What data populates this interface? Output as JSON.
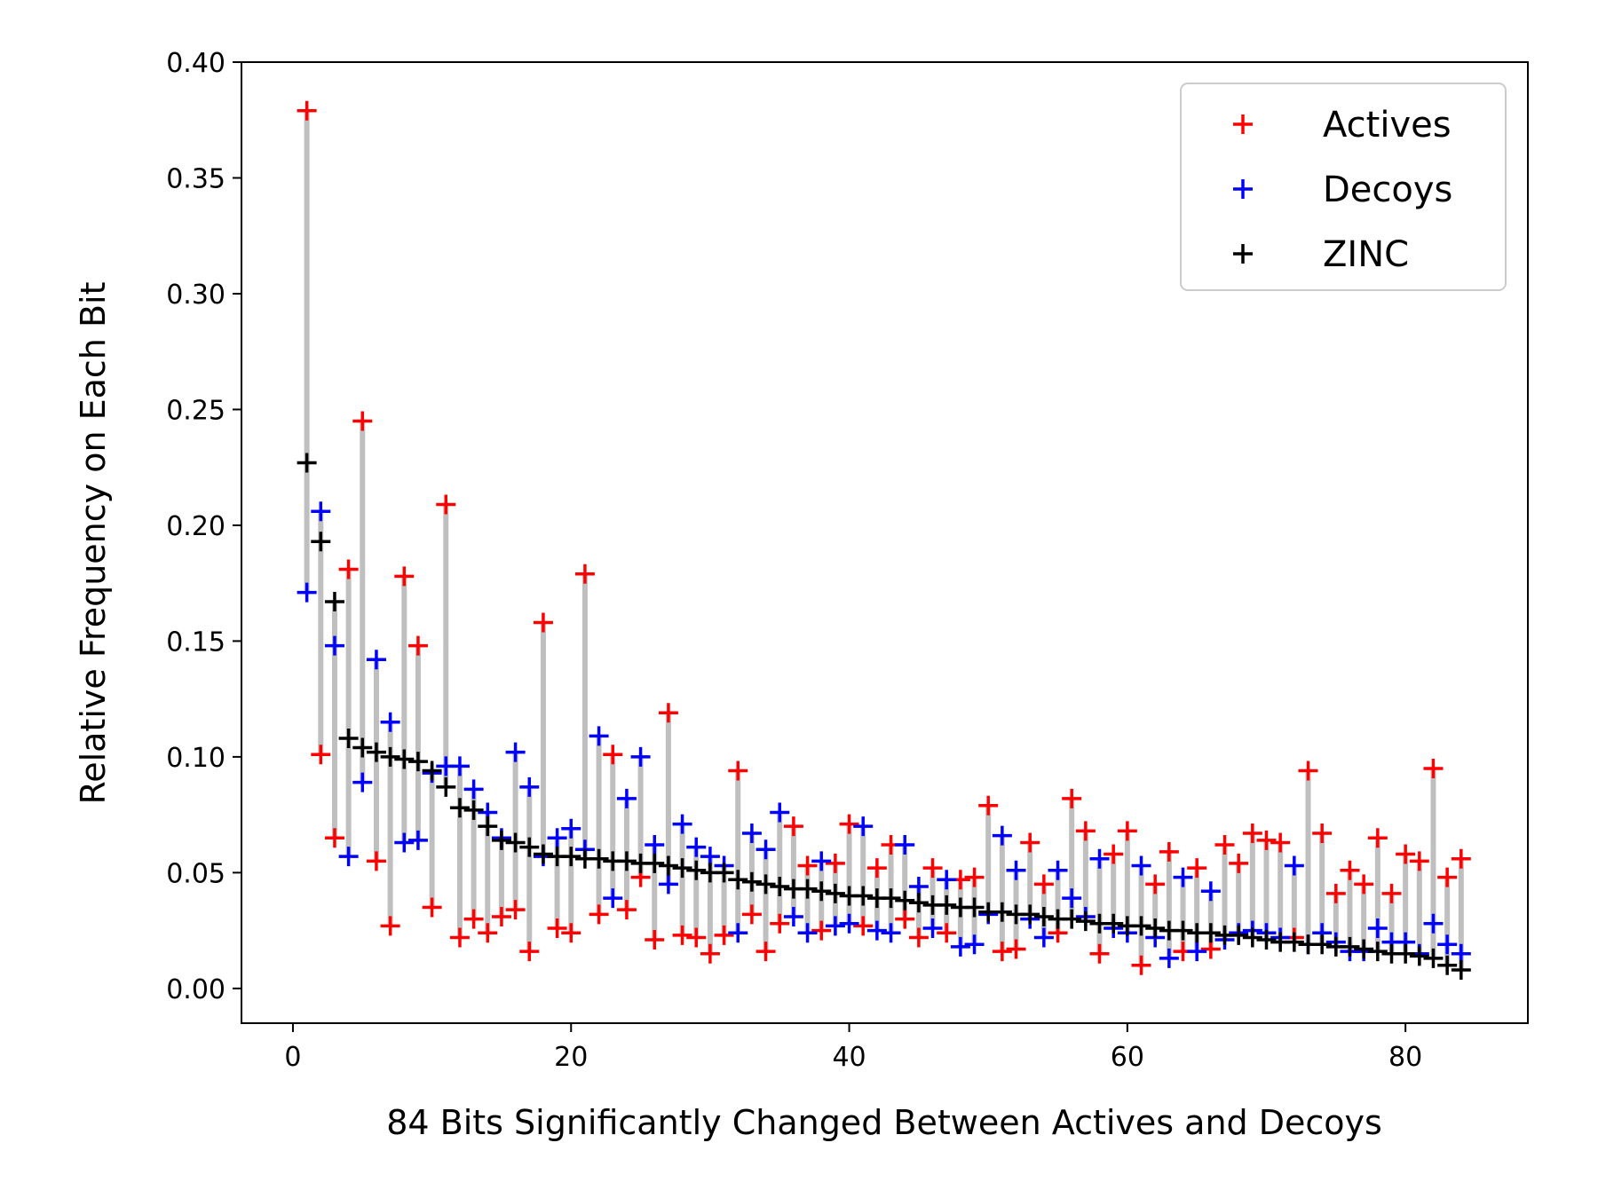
{
  "chart_data": {
    "type": "scatter",
    "xlabel": "84 Bits Significantly Changed Between Actives and Decoys",
    "ylabel": "Relative Frequency on Each Bit",
    "xlim": [
      -3.7,
      88.8
    ],
    "ylim": [
      -0.015,
      0.4
    ],
    "x_ticks": [
      0,
      20,
      40,
      60,
      80
    ],
    "x_tick_labels": [
      "0",
      "20",
      "40",
      "60",
      "80"
    ],
    "y_ticks": [
      0.0,
      0.05,
      0.1,
      0.15,
      0.2,
      0.25,
      0.3,
      0.35,
      0.4
    ],
    "y_tick_labels": [
      "0.00",
      "0.05",
      "0.10",
      "0.15",
      "0.20",
      "0.25",
      "0.30",
      "0.35",
      "0.40"
    ],
    "grid": false,
    "legend_position": "top-right",
    "range_line_color": "#bfbfbf",
    "x": [
      1,
      2,
      3,
      4,
      5,
      6,
      7,
      8,
      9,
      10,
      11,
      12,
      13,
      14,
      15,
      16,
      17,
      18,
      19,
      20,
      21,
      22,
      23,
      24,
      25,
      26,
      27,
      28,
      29,
      30,
      31,
      32,
      33,
      34,
      35,
      36,
      37,
      38,
      39,
      40,
      41,
      42,
      43,
      44,
      45,
      46,
      47,
      48,
      49,
      50,
      51,
      52,
      53,
      54,
      55,
      56,
      57,
      58,
      59,
      60,
      61,
      62,
      63,
      64,
      65,
      66,
      67,
      68,
      69,
      70,
      71,
      72,
      73,
      74,
      75,
      76,
      77,
      78,
      79,
      80,
      81,
      82,
      83,
      84
    ],
    "series": [
      {
        "name": "Actives",
        "color": "#ff0000",
        "values": [
          0.379,
          0.101,
          0.065,
          0.181,
          0.245,
          0.055,
          0.027,
          0.178,
          0.148,
          0.035,
          0.209,
          0.022,
          0.03,
          0.024,
          0.031,
          0.034,
          0.016,
          0.158,
          0.026,
          0.024,
          0.179,
          0.032,
          0.101,
          0.034,
          0.048,
          0.021,
          0.119,
          0.023,
          0.022,
          0.015,
          0.023,
          0.094,
          0.032,
          0.016,
          0.028,
          0.07,
          0.053,
          0.025,
          0.054,
          0.071,
          0.027,
          0.052,
          0.062,
          0.03,
          0.022,
          0.052,
          0.024,
          0.047,
          0.048,
          0.079,
          0.016,
          0.017,
          0.063,
          0.045,
          0.024,
          0.082,
          0.068,
          0.015,
          0.058,
          0.068,
          0.01,
          0.045,
          0.059,
          0.016,
          0.052,
          0.017,
          0.062,
          0.054,
          0.067,
          0.064,
          0.063,
          0.022,
          0.094,
          0.067,
          0.041,
          0.051,
          0.045,
          0.065,
          0.041,
          0.058,
          0.055,
          0.095,
          0.048,
          0.056
        ]
      },
      {
        "name": "Decoys",
        "color": "#0000ff",
        "values": [
          0.171,
          0.206,
          0.148,
          0.057,
          0.089,
          0.142,
          0.115,
          0.063,
          0.064,
          0.093,
          0.096,
          0.096,
          0.086,
          0.076,
          0.065,
          0.102,
          0.087,
          0.057,
          0.065,
          0.069,
          0.06,
          0.109,
          0.039,
          0.082,
          0.1,
          0.062,
          0.045,
          0.071,
          0.061,
          0.057,
          0.053,
          0.024,
          0.067,
          0.06,
          0.076,
          0.031,
          0.024,
          0.055,
          0.027,
          0.028,
          0.07,
          0.025,
          0.024,
          0.062,
          0.044,
          0.026,
          0.047,
          0.018,
          0.019,
          0.032,
          0.066,
          0.051,
          0.03,
          0.022,
          0.051,
          0.039,
          0.031,
          0.056,
          0.026,
          0.024,
          0.053,
          0.022,
          0.013,
          0.048,
          0.016,
          0.042,
          0.021,
          0.024,
          0.025,
          0.024,
          0.022,
          0.053,
          0.019,
          0.024,
          0.02,
          0.016,
          0.016,
          0.026,
          0.02,
          0.02,
          0.015,
          0.028,
          0.019,
          0.015
        ]
      },
      {
        "name": "ZINC",
        "color": "#000000",
        "values": [
          0.227,
          0.193,
          0.167,
          0.108,
          0.104,
          0.102,
          0.1,
          0.099,
          0.098,
          0.094,
          0.087,
          0.078,
          0.077,
          0.07,
          0.064,
          0.063,
          0.061,
          0.058,
          0.057,
          0.057,
          0.056,
          0.056,
          0.055,
          0.055,
          0.054,
          0.054,
          0.053,
          0.052,
          0.051,
          0.05,
          0.05,
          0.047,
          0.046,
          0.045,
          0.044,
          0.043,
          0.043,
          0.042,
          0.041,
          0.04,
          0.04,
          0.039,
          0.039,
          0.038,
          0.037,
          0.036,
          0.036,
          0.035,
          0.035,
          0.033,
          0.033,
          0.032,
          0.032,
          0.031,
          0.03,
          0.03,
          0.029,
          0.028,
          0.028,
          0.027,
          0.027,
          0.026,
          0.025,
          0.025,
          0.024,
          0.024,
          0.023,
          0.023,
          0.022,
          0.021,
          0.02,
          0.02,
          0.019,
          0.019,
          0.018,
          0.018,
          0.017,
          0.016,
          0.015,
          0.015,
          0.014,
          0.013,
          0.01,
          0.008
        ]
      }
    ]
  }
}
